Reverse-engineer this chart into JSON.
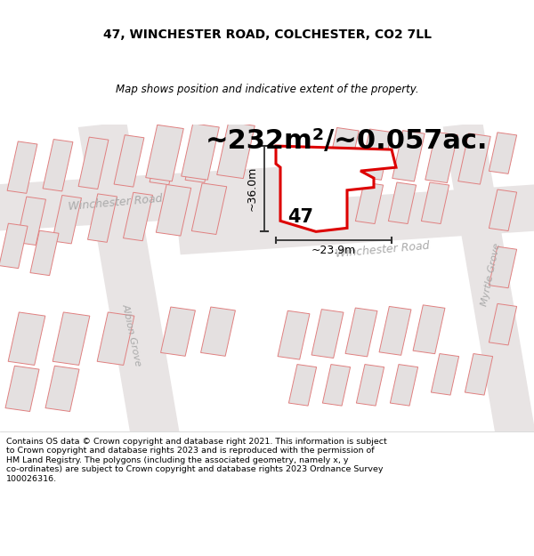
{
  "title_line1": "47, WINCHESTER ROAD, COLCHESTER, CO2 7LL",
  "title_line2": "Map shows position and indicative extent of the property.",
  "area_text": "~232m²/~0.057ac.",
  "label_47": "47",
  "dim_vertical": "~36.0m",
  "dim_horizontal": "~23.9m",
  "road_label_winchester1": "Winchester Road",
  "road_label_winchester2": "Winchester Road",
  "road_label_albion": "Albion Grove",
  "road_label_myrtle": "Myrtle Grove",
  "footer_text": "Contains OS data © Crown copyright and database right 2021. This information is subject\nto Crown copyright and database rights 2023 and is reproduced with the permission of\nHM Land Registry. The polygons (including the associated geometry, namely x, y\nco-ordinates) are subject to Crown copyright and database rights 2023 Ordnance Survey\n100026316.",
  "map_bg": "#f2f0f0",
  "road_bg": "#e8e4e4",
  "building_fc": "#e4e0e0",
  "building_ec": "#e08080",
  "plot_fc": "#ffffff",
  "plot_ec": "#dd0000",
  "dim_color": "#333333",
  "road_text_color": "#aaaaaa",
  "title_fontsize": 10,
  "subtitle_fontsize": 8.5,
  "area_fontsize": 22,
  "label47_fontsize": 15,
  "dim_fontsize": 9,
  "road_fontsize": 9,
  "footer_fontsize": 6.8,
  "fig_w": 6.0,
  "fig_h": 6.25,
  "dpi": 100
}
